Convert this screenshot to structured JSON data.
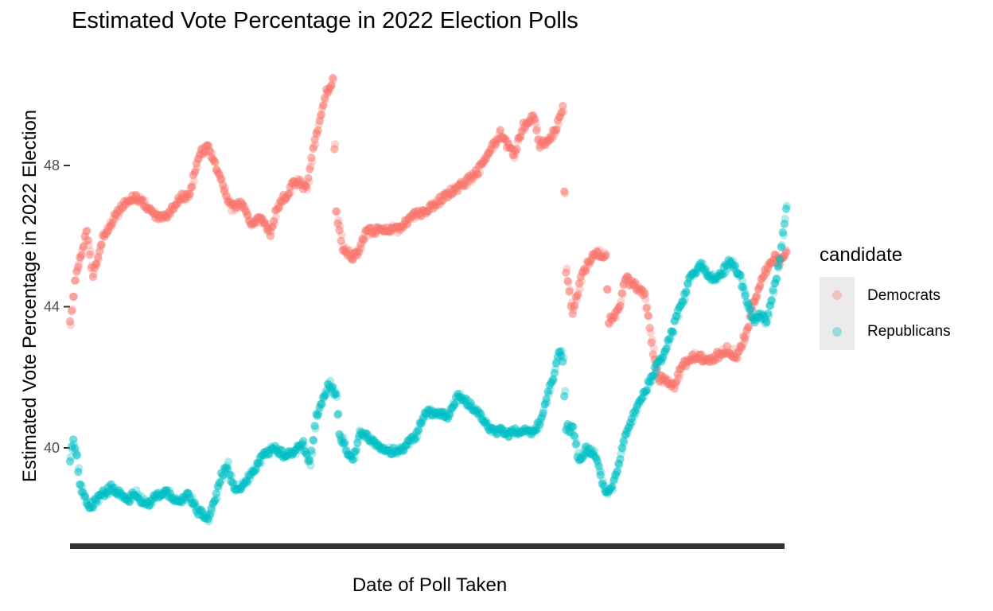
{
  "chart_data": {
    "type": "scatter",
    "title": "Estimated Vote Percentage in 2022 Election Polls",
    "xlabel": "Date of Poll Taken",
    "ylabel": "Estimated Vote Percentage in 2022 Election",
    "yticks": [
      40,
      44,
      48
    ],
    "ylim": [
      37.6,
      50.2
    ],
    "grid": false,
    "legend_title": "candidate",
    "legend_position": "right",
    "x_tick_labels": "overlapping, illegible",
    "series": [
      {
        "name": "Democrats",
        "color": "#F8766D",
        "keyframes": [
          [
            0,
            43.5
          ],
          [
            2,
            44.3
          ],
          [
            4,
            45.0
          ],
          [
            10,
            46.1
          ],
          [
            14,
            44.9
          ],
          [
            20,
            46.0
          ],
          [
            28,
            46.6
          ],
          [
            34,
            47.0
          ],
          [
            40,
            47.1
          ],
          [
            46,
            46.9
          ],
          [
            52,
            46.6
          ],
          [
            58,
            46.5
          ],
          [
            62,
            46.8
          ],
          [
            68,
            47.1
          ],
          [
            72,
            47.1
          ],
          [
            76,
            47.8
          ],
          [
            80,
            48.4
          ],
          [
            84,
            48.5
          ],
          [
            88,
            48.0
          ],
          [
            94,
            47.3
          ],
          [
            98,
            46.8
          ],
          [
            104,
            46.9
          ],
          [
            110,
            46.4
          ],
          [
            116,
            46.5
          ],
          [
            122,
            46.1
          ],
          [
            126,
            46.8
          ],
          [
            132,
            47.2
          ],
          [
            138,
            47.6
          ],
          [
            144,
            47.3
          ],
          [
            148,
            48.5
          ],
          [
            152,
            49.3
          ],
          [
            156,
            50.1
          ],
          [
            160,
            50.4
          ],
          [
            162,
            46.7
          ],
          [
            166,
            45.7
          ],
          [
            172,
            45.4
          ],
          [
            176,
            45.6
          ],
          [
            180,
            46.1
          ],
          [
            190,
            46.2
          ],
          [
            200,
            46.2
          ],
          [
            210,
            46.6
          ],
          [
            216,
            46.7
          ],
          [
            222,
            46.9
          ],
          [
            230,
            47.2
          ],
          [
            240,
            47.5
          ],
          [
            248,
            47.8
          ],
          [
            254,
            48.3
          ],
          [
            262,
            48.9
          ],
          [
            270,
            48.3
          ],
          [
            276,
            49.1
          ],
          [
            282,
            49.4
          ],
          [
            286,
            48.6
          ],
          [
            292,
            48.7
          ],
          [
            296,
            49.1
          ],
          [
            300,
            49.6
          ],
          [
            302,
            45.0
          ],
          [
            306,
            43.8
          ],
          [
            312,
            45.0
          ],
          [
            320,
            45.5
          ],
          [
            326,
            45.5
          ],
          [
            328,
            43.6
          ],
          [
            334,
            43.9
          ],
          [
            338,
            44.8
          ],
          [
            344,
            44.6
          ],
          [
            350,
            44.3
          ],
          [
            354,
            43.0
          ],
          [
            358,
            42.0
          ],
          [
            364,
            41.9
          ],
          [
            368,
            41.7
          ],
          [
            372,
            42.3
          ],
          [
            380,
            42.6
          ],
          [
            390,
            42.5
          ],
          [
            400,
            42.8
          ],
          [
            406,
            42.6
          ],
          [
            412,
            43.3
          ],
          [
            416,
            44.1
          ],
          [
            422,
            44.9
          ],
          [
            428,
            45.4
          ],
          [
            432,
            45.3
          ],
          [
            436,
            45.6
          ]
        ]
      },
      {
        "name": "Republicans",
        "color": "#00BFC4",
        "keyframes": [
          [
            0,
            39.7
          ],
          [
            2,
            40.2
          ],
          [
            4,
            39.8
          ],
          [
            6,
            39.0
          ],
          [
            10,
            38.4
          ],
          [
            14,
            38.4
          ],
          [
            20,
            38.7
          ],
          [
            26,
            38.9
          ],
          [
            34,
            38.5
          ],
          [
            40,
            38.7
          ],
          [
            46,
            38.4
          ],
          [
            52,
            38.6
          ],
          [
            58,
            38.8
          ],
          [
            66,
            38.4
          ],
          [
            72,
            38.7
          ],
          [
            78,
            38.2
          ],
          [
            84,
            38.0
          ],
          [
            88,
            38.5
          ],
          [
            92,
            39.2
          ],
          [
            96,
            39.5
          ],
          [
            100,
            38.8
          ],
          [
            106,
            39.0
          ],
          [
            112,
            39.4
          ],
          [
            118,
            39.8
          ],
          [
            124,
            40.0
          ],
          [
            130,
            39.8
          ],
          [
            136,
            39.9
          ],
          [
            142,
            40.1
          ],
          [
            146,
            39.6
          ],
          [
            150,
            40.9
          ],
          [
            154,
            41.4
          ],
          [
            158,
            41.8
          ],
          [
            162,
            41.5
          ],
          [
            164,
            40.4
          ],
          [
            168,
            40.0
          ],
          [
            172,
            39.6
          ],
          [
            176,
            40.4
          ],
          [
            182,
            40.3
          ],
          [
            188,
            40.0
          ],
          [
            196,
            39.9
          ],
          [
            202,
            40.0
          ],
          [
            210,
            40.3
          ],
          [
            216,
            41.0
          ],
          [
            222,
            41.0
          ],
          [
            230,
            40.9
          ],
          [
            236,
            41.5
          ],
          [
            242,
            41.3
          ],
          [
            250,
            40.9
          ],
          [
            256,
            40.5
          ],
          [
            262,
            40.5
          ],
          [
            268,
            40.4
          ],
          [
            274,
            40.5
          ],
          [
            280,
            40.4
          ],
          [
            286,
            40.7
          ],
          [
            290,
            41.4
          ],
          [
            294,
            42.0
          ],
          [
            298,
            42.8
          ],
          [
            300,
            42.5
          ],
          [
            302,
            40.6
          ],
          [
            306,
            40.5
          ],
          [
            310,
            39.6
          ],
          [
            314,
            40.0
          ],
          [
            320,
            39.8
          ],
          [
            326,
            38.7
          ],
          [
            330,
            38.9
          ],
          [
            334,
            39.5
          ],
          [
            338,
            40.4
          ],
          [
            344,
            41.0
          ],
          [
            350,
            41.6
          ],
          [
            356,
            42.2
          ],
          [
            362,
            42.7
          ],
          [
            366,
            43.2
          ],
          [
            370,
            43.8
          ],
          [
            374,
            44.3
          ],
          [
            378,
            44.9
          ],
          [
            384,
            45.2
          ],
          [
            390,
            44.8
          ],
          [
            396,
            44.9
          ],
          [
            402,
            45.3
          ],
          [
            408,
            44.8
          ],
          [
            412,
            44.1
          ],
          [
            416,
            43.6
          ],
          [
            420,
            43.8
          ],
          [
            424,
            43.5
          ],
          [
            428,
            44.4
          ],
          [
            432,
            45.3
          ],
          [
            436,
            46.8
          ]
        ]
      }
    ]
  }
}
